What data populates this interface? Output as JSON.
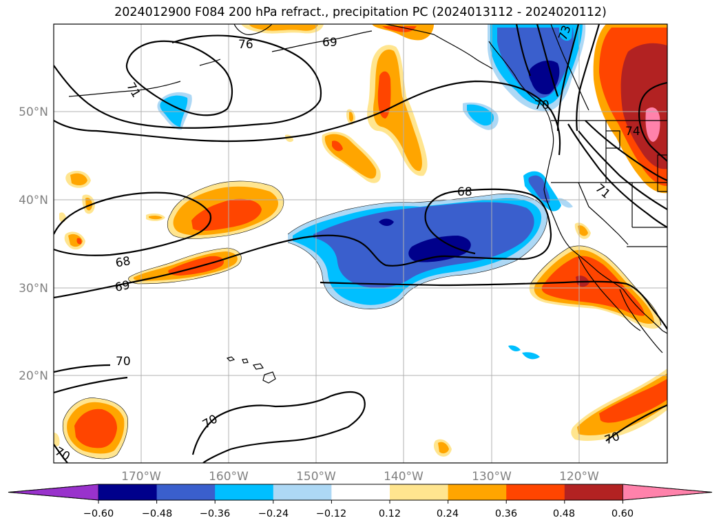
{
  "title": "2024012900 F084 200 hPa refract., precipitation PC (2024013112 - 2024020112)",
  "lat_labels": [
    "50°N",
    "40°N",
    "30°N",
    "20°N"
  ],
  "lon_labels": [
    "170°W",
    "160°W",
    "150°W",
    "140°W",
    "130°W",
    "120°W"
  ],
  "contour_labels": [
    "76",
    "69",
    "71",
    "73",
    "70",
    "74",
    "71",
    "68",
    "68",
    "69",
    "70",
    "70",
    "70",
    "70"
  ],
  "colorbar": {
    "ticks": [
      "−0.60",
      "−0.48",
      "−0.36",
      "−0.24",
      "−0.12",
      "0.12",
      "0.24",
      "0.36",
      "0.48",
      "0.60"
    ],
    "colors": [
      "#9932cc",
      "#00008b",
      "#3a5fcd",
      "#00bfff",
      "#add8f5",
      "#ffffff",
      "#ffe58f",
      "#ffa500",
      "#ff4500",
      "#b22222",
      "#ff82ab"
    ]
  },
  "colors": {
    "coast": "#000000",
    "grid": "#b0b0b0",
    "label_gray": "#808080"
  }
}
